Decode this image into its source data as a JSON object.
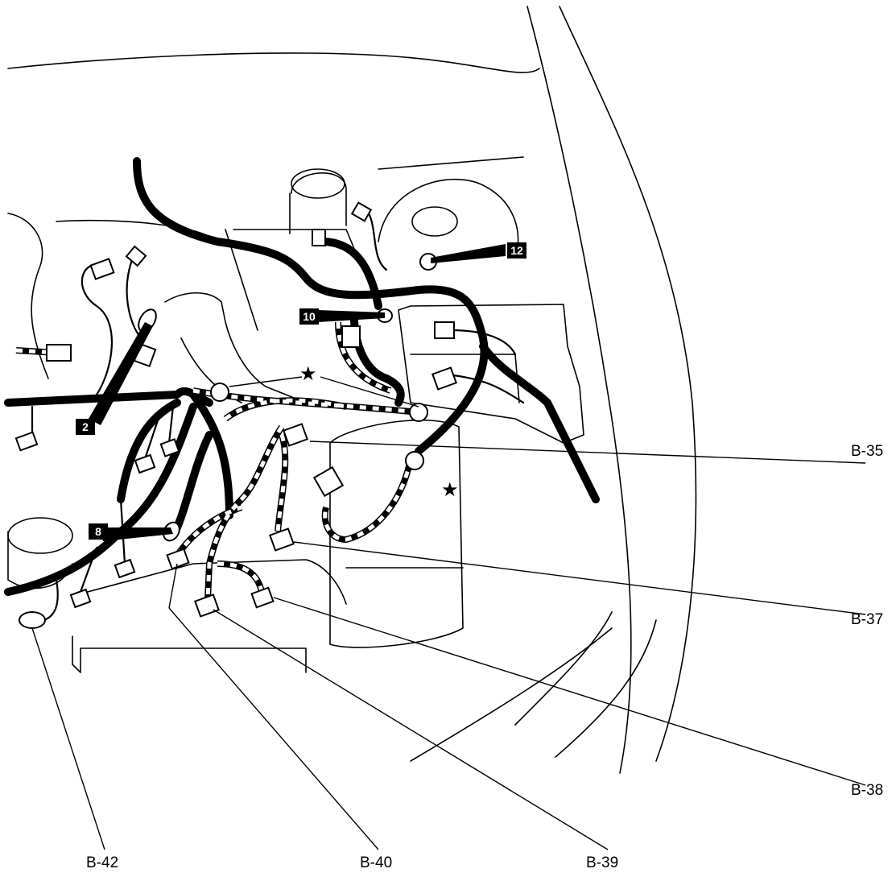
{
  "diagram": {
    "callouts": {
      "b35": "B-35",
      "b37": "B-37",
      "b38": "B-38",
      "b39": "B-39",
      "b40": "B-40",
      "b42": "B-42"
    },
    "badges": {
      "n2": "2",
      "n8": "8",
      "n10": "10",
      "n12": "12"
    },
    "markers": {
      "star": "★"
    }
  },
  "colors": {
    "ink": "#000000",
    "paper": "#ffffff"
  }
}
